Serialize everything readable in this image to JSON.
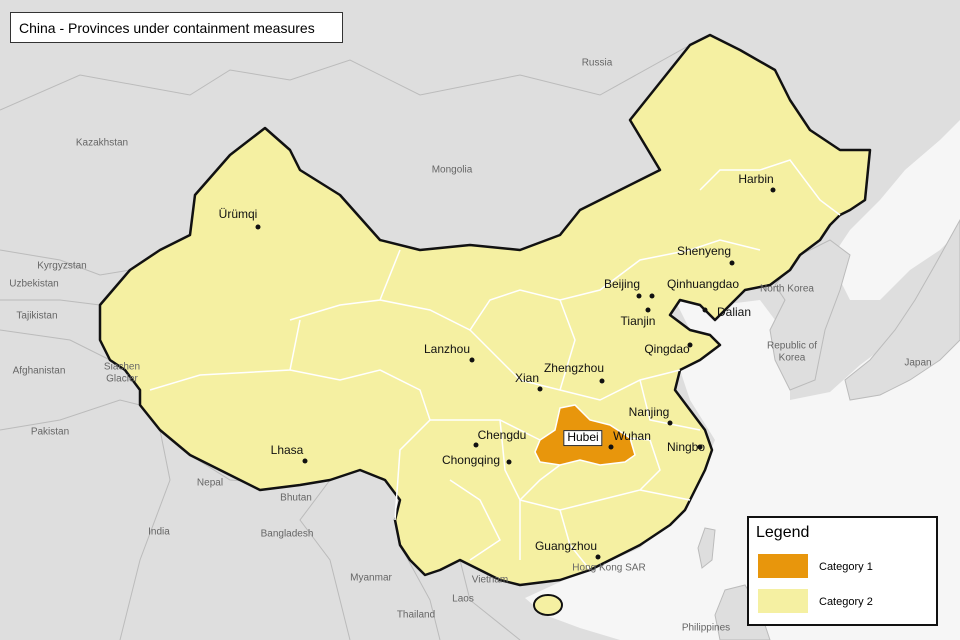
{
  "title": "China - Provinces under containment measures",
  "countries": [
    "Russia",
    "Kazakhstan",
    "Mongolia",
    "Kyrgyzstan",
    "Uzbekistan",
    "Tajikistan",
    "Afghanistan",
    "Siachen Glacier",
    "Pakistan",
    "Nepal",
    "Bhutan",
    "India",
    "Bangladesh",
    "Myanmar",
    "Vietnam",
    "Laos",
    "Thailand",
    "Philippines",
    "North Korea",
    "Republic of Korea",
    "Japan",
    "Hong Kong SAR"
  ],
  "cities": [
    "Ürümqi",
    "Harbin",
    "Shenyeng",
    "Beijing",
    "Qinhuangdao",
    "Tianjin",
    "Dalian",
    "Qingdao",
    "Lanzhou",
    "Xian",
    "Zhengzhou",
    "Nanjing",
    "Ningbo",
    "Wuhan",
    "Chengdu",
    "Chongqing",
    "Lhasa",
    "Guangzhou"
  ],
  "highlighted_province": "Hubei",
  "legend": {
    "title": "Legend",
    "items": [
      {
        "label": "Category 1",
        "color": "#e8960c"
      },
      {
        "label": "Category 2",
        "color": "#f5f0a2"
      }
    ]
  }
}
